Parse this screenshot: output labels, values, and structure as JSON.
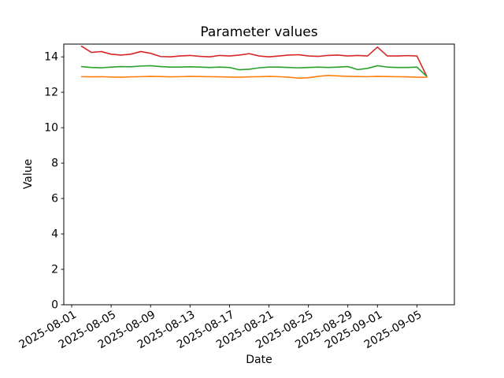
{
  "figure": {
    "background": "#ffffff",
    "frame_color": "#000000",
    "text_color": "#000000"
  },
  "chart_data": {
    "type": "line",
    "title": "Parameter values",
    "xlabel": "Date",
    "ylabel": "Value",
    "grid": false,
    "legend": false,
    "x": [
      "2025-08-02",
      "2025-08-03",
      "2025-08-04",
      "2025-08-05",
      "2025-08-06",
      "2025-08-07",
      "2025-08-08",
      "2025-08-09",
      "2025-08-10",
      "2025-08-11",
      "2025-08-12",
      "2025-08-13",
      "2025-08-14",
      "2025-08-15",
      "2025-08-16",
      "2025-08-17",
      "2025-08-18",
      "2025-08-19",
      "2025-08-20",
      "2025-08-21",
      "2025-08-22",
      "2025-08-23",
      "2025-08-24",
      "2025-08-25",
      "2025-08-26",
      "2025-08-27",
      "2025-08-28",
      "2025-08-29",
      "2025-08-30",
      "2025-08-31",
      "2025-09-01",
      "2025-09-02",
      "2025-09-03",
      "2025-09-04",
      "2025-09-05",
      "2025-09-06"
    ],
    "series": [
      {
        "name": "red",
        "color": "#d62728",
        "values": [
          14.6,
          14.25,
          14.3,
          14.15,
          14.1,
          14.15,
          14.3,
          14.2,
          14.02,
          14.0,
          14.05,
          14.08,
          14.03,
          14.0,
          14.08,
          14.05,
          14.1,
          14.18,
          14.05,
          14.0,
          14.05,
          14.1,
          14.12,
          14.05,
          14.03,
          14.08,
          14.1,
          14.05,
          14.08,
          14.05,
          14.55,
          14.05,
          14.05,
          14.07,
          14.05,
          12.9
        ]
      },
      {
        "name": "green",
        "color": "#2ca02c",
        "values": [
          13.45,
          13.4,
          13.38,
          13.42,
          13.45,
          13.44,
          13.48,
          13.5,
          13.45,
          13.42,
          13.42,
          13.44,
          13.42,
          13.4,
          13.42,
          13.4,
          13.27,
          13.3,
          13.38,
          13.42,
          13.42,
          13.4,
          13.38,
          13.4,
          13.42,
          13.4,
          13.42,
          13.45,
          13.28,
          13.35,
          13.5,
          13.42,
          13.4,
          13.4,
          13.42,
          12.9
        ]
      },
      {
        "name": "orange",
        "color": "#ff7f0e",
        "values": [
          12.88,
          12.87,
          12.88,
          12.86,
          12.85,
          12.87,
          12.88,
          12.9,
          12.89,
          12.87,
          12.88,
          12.9,
          12.89,
          12.88,
          12.87,
          12.86,
          12.85,
          12.87,
          12.88,
          12.9,
          12.88,
          12.85,
          12.8,
          12.82,
          12.9,
          12.95,
          12.92,
          12.9,
          12.89,
          12.88,
          12.9,
          12.89,
          12.88,
          12.87,
          12.85,
          12.85
        ]
      }
    ],
    "x_ticks": [
      "2025-08-01",
      "2025-08-05",
      "2025-08-09",
      "2025-08-13",
      "2025-08-17",
      "2025-08-21",
      "2025-08-25",
      "2025-08-29",
      "2025-09-01",
      "2025-09-05"
    ],
    "y_ticks": [
      0,
      2,
      4,
      6,
      8,
      10,
      12,
      14
    ],
    "ylim": [
      0,
      14.72
    ],
    "xlim_days": [
      -0.8,
      38.8
    ],
    "x_tick_rotation_deg": -30
  }
}
